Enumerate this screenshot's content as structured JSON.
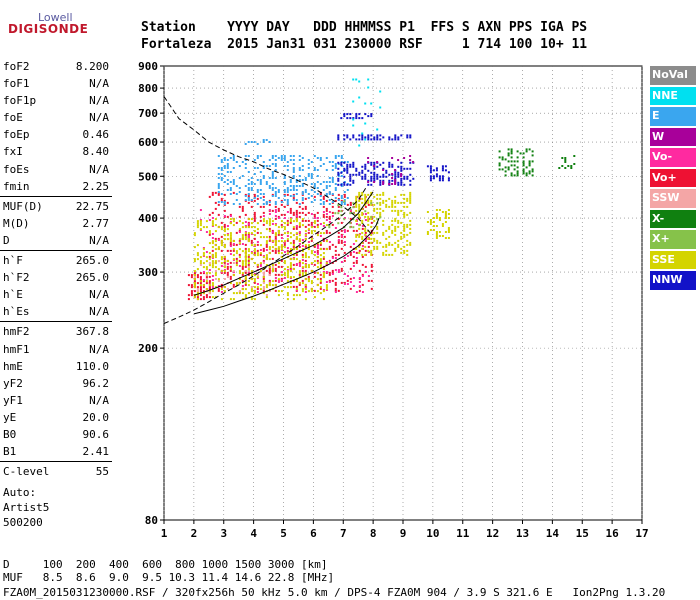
{
  "logo": {
    "top": "Lowell",
    "main": "DIGISONDE"
  },
  "header": {
    "line1": "Station    YYYY DAY   DDD HHMMSS P1  FFS S AXN PPS IGA PS",
    "line2": "Fortaleza  2015 Jan31 031 230000 RSF     1 714 100 10+ 11"
  },
  "parameters": [
    {
      "name": "foF2",
      "value": "8.200"
    },
    {
      "name": "foF1",
      "value": "N/A"
    },
    {
      "name": "foF1p",
      "value": "N/A"
    },
    {
      "name": "foE",
      "value": "N/A"
    },
    {
      "name": "foEp",
      "value": "0.46"
    },
    {
      "name": "fxI",
      "value": "8.40"
    },
    {
      "name": "foEs",
      "value": "N/A"
    },
    {
      "name": "fmin",
      "value": "2.25"
    },
    {
      "name": "MUF(D)",
      "value": "22.75"
    },
    {
      "name": "M(D)",
      "value": "2.77"
    },
    {
      "name": "D",
      "value": "N/A"
    },
    {
      "name": "h`F",
      "value": "265.0"
    },
    {
      "name": "h`F2",
      "value": "265.0"
    },
    {
      "name": "h`E",
      "value": "N/A"
    },
    {
      "name": "h`Es",
      "value": "N/A"
    },
    {
      "name": "hmF2",
      "value": "367.8"
    },
    {
      "name": "hmF1",
      "value": "N/A"
    },
    {
      "name": "hmE",
      "value": "110.0"
    },
    {
      "name": "yF2",
      "value": "96.2"
    },
    {
      "name": "yF1",
      "value": "N/A"
    },
    {
      "name": "yE",
      "value": "20.0"
    },
    {
      "name": "B0",
      "value": "90.6"
    },
    {
      "name": "B1",
      "value": "2.41"
    },
    {
      "name": "C-level",
      "value": "55"
    }
  ],
  "auto": {
    "line1": "Auto:",
    "line2": "Artist5",
    "line3": "500200"
  },
  "legend": [
    {
      "label": "NoVal",
      "color": "#8c8c8c"
    },
    {
      "label": "NNE",
      "color": "#00e0f0"
    },
    {
      "label": "E",
      "color": "#3aa6ef"
    },
    {
      "label": "W",
      "color": "#a8009a"
    },
    {
      "label": "Vo-",
      "color": "#ff2aa0"
    },
    {
      "label": "Vo+",
      "color": "#ee1133"
    },
    {
      "label": "SSW",
      "color": "#f4a6a6"
    },
    {
      "label": "X-",
      "color": "#108010"
    },
    {
      "label": "X+",
      "color": "#86c24a"
    },
    {
      "label": "SSE",
      "color": "#d4d400"
    },
    {
      "label": "NNW",
      "color": "#1212c8"
    }
  ],
  "footer": {
    "line1": "D     100  200  400  600  800 1000 1500 3000 [km]",
    "line2": "MUF   8.5  8.6  9.0  9.5 10.3 11.4 14.6 22.8 [MHz]",
    "line3": "FZA0M_2015031230000.RSF / 320fx256h 50 kHz 5.0 km / DPS-4 FZA0M 904 / 3.9 S 321.6 E   Ion2Png 1.3.20"
  },
  "chart_data": {
    "type": "scatter",
    "title": "",
    "xlabel": "",
    "ylabel": "",
    "xlim": [
      1,
      17
    ],
    "ylim": [
      80,
      900
    ],
    "xticks": [
      1,
      2,
      3,
      4,
      5,
      6,
      7,
      8,
      9,
      10,
      11,
      12,
      13,
      14,
      15,
      16,
      17
    ],
    "yticks": [
      80,
      200,
      300,
      400,
      500,
      600,
      700,
      800,
      900
    ],
    "y_scale": "log",
    "grid": "dotted",
    "traces": [
      {
        "name": "",
        "style": "dashed",
        "x": [
          1,
          1.5,
          2,
          2.5,
          3,
          3.5,
          4,
          4.5,
          5,
          5.5,
          6,
          6.5,
          7,
          7.5,
          7.9
        ],
        "y": [
          765,
          680,
          640,
          600,
          575,
          555,
          540,
          520,
          505,
          488,
          470,
          447,
          425,
          400,
          370
        ]
      },
      {
        "name": "",
        "style": "dashed",
        "x": [
          1,
          1.5,
          2,
          2.5,
          3,
          3.5,
          4,
          4.5,
          5,
          5.5,
          6,
          6.5,
          7,
          7.5,
          7.8
        ],
        "y": [
          228,
          236,
          245,
          256,
          268,
          280,
          294,
          310,
          327,
          345,
          365,
          385,
          408,
          440,
          475
        ]
      },
      {
        "name": "",
        "style": "solid",
        "x": [
          2,
          2.5,
          3,
          3.5,
          4,
          4.5,
          5,
          5.5,
          6,
          6.5,
          7,
          7.5,
          7.9,
          8.1,
          8.2
        ],
        "y": [
          240,
          245,
          250,
          257,
          264,
          272,
          281,
          290,
          300,
          312,
          326,
          345,
          368,
          385,
          400
        ]
      },
      {
        "name": "",
        "style": "solid",
        "x": [
          2,
          2.5,
          3,
          3.5,
          4,
          4.5,
          5,
          5.5,
          6,
          6.5,
          7,
          7.5,
          8
        ],
        "y": [
          265,
          272,
          280,
          290,
          300,
          311,
          322,
          334,
          346,
          362,
          380,
          410,
          460
        ]
      }
    ],
    "echo_clusters": [
      {
        "group": "Vo+",
        "x": [
          1.8,
          2.6
        ],
        "y": [
          260,
          300
        ],
        "density": 0.55
      },
      {
        "group": "Vo+",
        "x": [
          2.5,
          8.0
        ],
        "y": [
          270,
          460
        ],
        "density": 0.18
      },
      {
        "group": "Vo-",
        "x": [
          2.2,
          7.9
        ],
        "y": [
          270,
          420
        ],
        "density": 0.08
      },
      {
        "group": "SSE",
        "x": [
          2.0,
          6.5
        ],
        "y": [
          260,
          400
        ],
        "density": 0.26
      },
      {
        "group": "SSE",
        "x": [
          7.4,
          9.3
        ],
        "y": [
          330,
          460
        ],
        "density": 0.4
      },
      {
        "group": "SSE",
        "x": [
          9.8,
          10.6
        ],
        "y": [
          360,
          420
        ],
        "density": 0.35
      },
      {
        "group": "E",
        "x": [
          2.8,
          7.2
        ],
        "y": [
          430,
          560
        ],
        "density": 0.28
      },
      {
        "group": "E",
        "x": [
          3.6,
          4.6
        ],
        "y": [
          595,
          610
        ],
        "density": 0.5
      },
      {
        "group": "NNW",
        "x": [
          6.8,
          9.4
        ],
        "y": [
          480,
          540
        ],
        "density": 0.45
      },
      {
        "group": "NNW",
        "x": [
          6.8,
          9.3
        ],
        "y": [
          610,
          625
        ],
        "density": 0.6
      },
      {
        "group": "NNW",
        "x": [
          6.8,
          8.0
        ],
        "y": [
          680,
          700
        ],
        "density": 0.5
      },
      {
        "group": "NNW",
        "x": [
          9.8,
          10.6
        ],
        "y": [
          490,
          530
        ],
        "density": 0.45
      },
      {
        "group": "NNE",
        "x": [
          7.3,
          8.4
        ],
        "y": [
          590,
          860
        ],
        "density": 0.05
      },
      {
        "group": "X-",
        "x": [
          12.2,
          13.4
        ],
        "y": [
          500,
          580
        ],
        "density": 0.35
      },
      {
        "group": "X-",
        "x": [
          14.2,
          14.8
        ],
        "y": [
          520,
          560
        ],
        "density": 0.25
      },
      {
        "group": "W",
        "x": [
          7.8,
          9.4
        ],
        "y": [
          480,
          560
        ],
        "density": 0.08
      },
      {
        "group": "X+",
        "x": [
          6.5,
          8.3
        ],
        "y": [
          380,
          440
        ],
        "density": 0.15
      },
      {
        "group": "SSW",
        "x": [
          2.0,
          5.0
        ],
        "y": [
          265,
          320
        ],
        "density": 0.08
      }
    ]
  }
}
